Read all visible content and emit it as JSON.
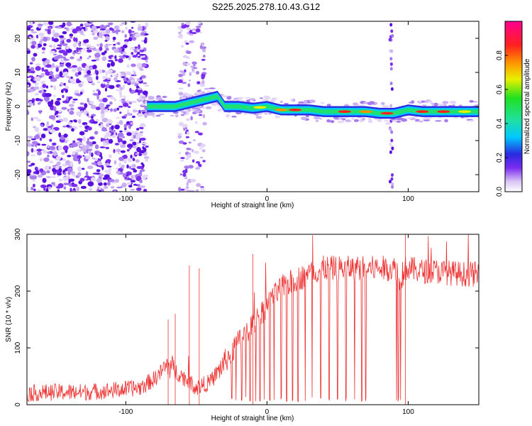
{
  "title": "S225.2025.278.10.43.G12",
  "chart_data": [
    {
      "type": "heatmap",
      "xlabel": "Height of straight line (km)",
      "ylabel": "Frequency (Hz)",
      "xlim": [
        -170,
        150
      ],
      "ylim": [
        -25,
        25
      ],
      "xticks": [
        -100,
        0,
        100
      ],
      "xtick_labels": [
        "-100",
        "0",
        "100"
      ],
      "yticks": [
        -20,
        -10,
        0,
        10,
        20
      ],
      "ytick_labels": [
        "-20",
        "-10",
        "0",
        "10",
        "20"
      ],
      "colorbar": {
        "label": "Normalized spectral amplitude",
        "range": [
          0,
          1
        ],
        "ticks": [
          0.0,
          0.2,
          0.4,
          0.6,
          0.8
        ],
        "tick_labels": [
          "0.0",
          "0.2",
          "0.4",
          "0.6",
          "0.8"
        ]
      },
      "ridge": {
        "x": [
          -85,
          -75,
          -65,
          -55,
          -45,
          -35,
          -30,
          -20,
          -10,
          0,
          10,
          20,
          30,
          40,
          50,
          60,
          70,
          80,
          90,
          100,
          110,
          120,
          130,
          140,
          150
        ],
        "freq": [
          0,
          0,
          0,
          1,
          2,
          3,
          0,
          0,
          -0.5,
          0,
          -1,
          -1,
          -1,
          -1.5,
          -1.5,
          -1.5,
          -1.5,
          -2,
          -2,
          -1,
          -1.5,
          -1.5,
          -1.5,
          -1.5,
          -1.5
        ]
      }
    },
    {
      "type": "line",
      "xlabel": "Height of straight line (km)",
      "ylabel": "SNR (10 * v/v)",
      "xlim": [
        -170,
        150
      ],
      "ylim": [
        0,
        300
      ],
      "xticks": [
        -100,
        0,
        100
      ],
      "xtick_labels": [
        "-100",
        "0",
        "100"
      ],
      "yticks": [
        0,
        100,
        200,
        300
      ],
      "ytick_labels": [
        "0",
        "100",
        "200",
        "300"
      ],
      "series": [
        {
          "name": "SNR",
          "color": "#ee3333",
          "x": [
            -170,
            -150,
            -130,
            -110,
            -90,
            -80,
            -70,
            -60,
            -50,
            -40,
            -30,
            -20,
            -10,
            0,
            10,
            20,
            30,
            40,
            50,
            60,
            70,
            80,
            90,
            100,
            110,
            120,
            130,
            140,
            150
          ],
          "y": [
            20,
            22,
            22,
            25,
            30,
            45,
            70,
            50,
            30,
            40,
            75,
            110,
            140,
            175,
            205,
            220,
            230,
            240,
            240,
            240,
            240,
            240,
            240,
            240,
            235,
            235,
            232,
            230,
            230
          ]
        }
      ]
    }
  ]
}
